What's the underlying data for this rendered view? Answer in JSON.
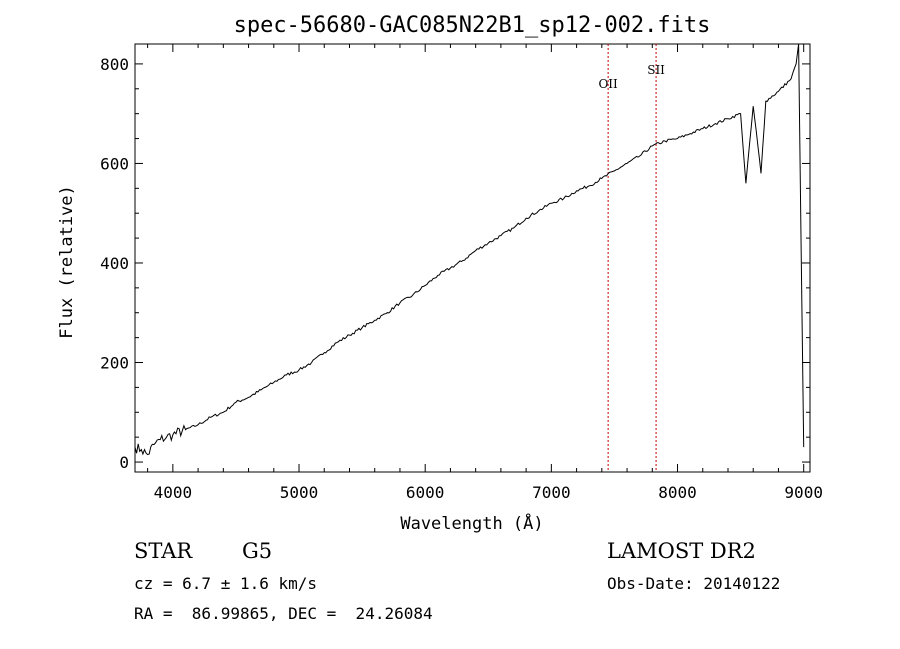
{
  "chart_data": {
    "type": "line",
    "title": "spec-56680-GAC085N22B1_sp12-002.fits",
    "xlabel": "Wavelength (Å)",
    "ylabel": "Flux (relative)",
    "xlim": [
      3700,
      9050
    ],
    "ylim": [
      -20,
      840
    ],
    "xticks": [
      4000,
      5000,
      6000,
      7000,
      8000,
      9000
    ],
    "yticks": [
      0,
      200,
      400,
      600,
      800
    ],
    "grid": false,
    "line_color": "#000000",
    "series": [
      {
        "x": [
          3700,
          3750,
          3800,
          3850,
          3900,
          3950,
          4000,
          4100,
          4200,
          4300,
          4400,
          4500,
          4600,
          4700,
          4800,
          4900,
          5000,
          5100,
          5200,
          5300,
          5400,
          5500,
          5600,
          5700,
          5800,
          5900,
          6000,
          6100,
          6200,
          6300,
          6400,
          6500,
          6600,
          6700,
          6800,
          6900,
          7000,
          7100,
          7200,
          7300,
          7400,
          7500,
          7600,
          7700,
          7800,
          7900,
          8000,
          8100,
          8200,
          8300,
          8400,
          8500,
          8542,
          8600,
          8662,
          8700,
          8800,
          8900,
          8940,
          8960,
          8980,
          9000
        ],
        "y": [
          30,
          25,
          15,
          35,
          45,
          50,
          55,
          65,
          75,
          90,
          100,
          120,
          130,
          145,
          160,
          175,
          185,
          200,
          220,
          240,
          255,
          270,
          285,
          300,
          320,
          335,
          355,
          375,
          390,
          405,
          425,
          440,
          455,
          470,
          490,
          505,
          520,
          530,
          545,
          555,
          570,
          585,
          600,
          615,
          635,
          645,
          650,
          660,
          670,
          680,
          690,
          700,
          560,
          715,
          580,
          725,
          745,
          770,
          800,
          840,
          420,
          30
        ]
      }
    ],
    "annotations": [
      {
        "label": "OII",
        "x": 7450,
        "label_y": 752
      },
      {
        "label": "SII",
        "x": 7830,
        "label_y": 780
      }
    ],
    "annotation_color": "#c00000"
  },
  "info": {
    "object_class": "STAR",
    "subclass": "G5",
    "survey": "LAMOST DR2",
    "cz": "cz = 6.7 ± 1.6 km/s",
    "obs_date": "Obs-Date: 20140122",
    "coords": "RA =  86.99865, DEC =  24.26084"
  }
}
